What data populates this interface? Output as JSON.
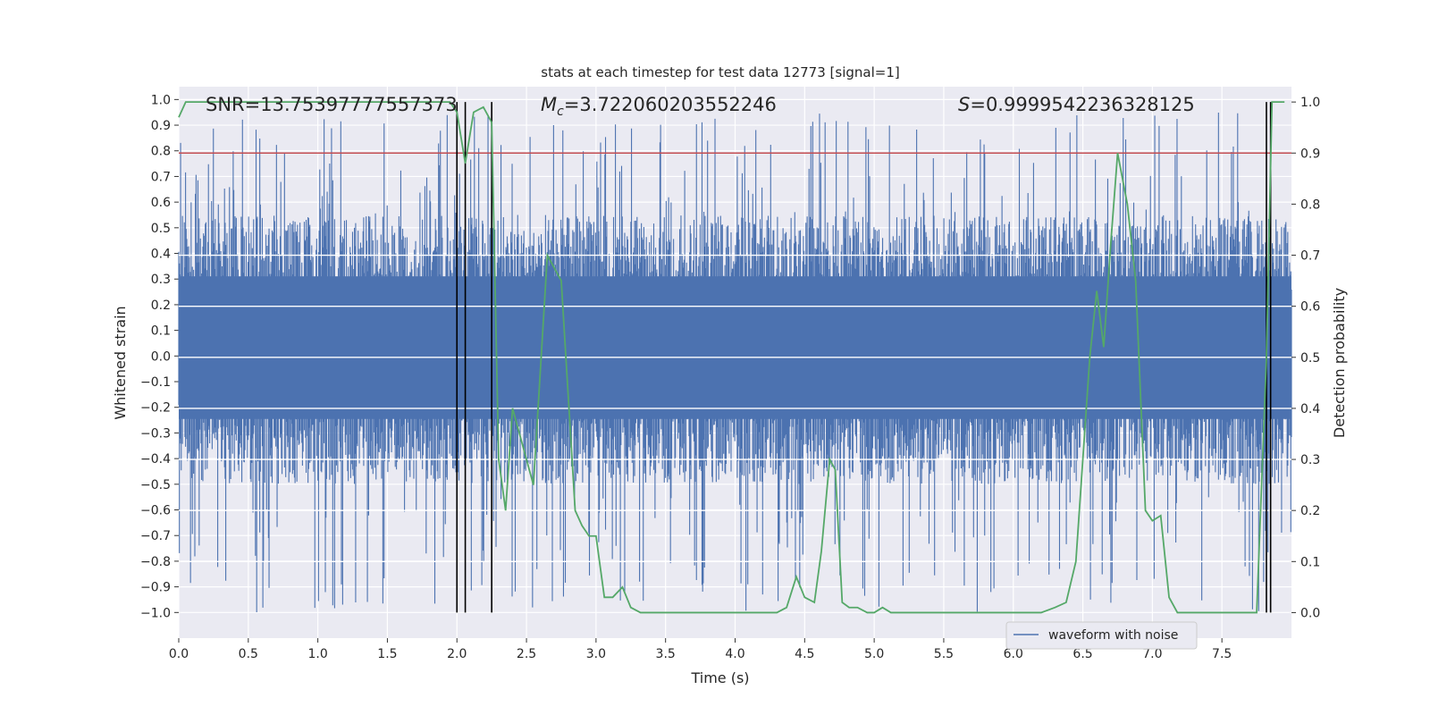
{
  "chart_data": {
    "type": "line",
    "title": "stats at each timestep for test data 12773 [signal=1]",
    "xlabel": "Time (s)",
    "ylabel": "Whitened strain",
    "y2label": "Detection probability",
    "xlim": [
      0,
      8
    ],
    "ylim": [
      -1.1,
      1.05
    ],
    "y2lim": [
      -0.05,
      1.03
    ],
    "x_ticks": [
      0.0,
      0.5,
      1.0,
      1.5,
      2.0,
      2.5,
      3.0,
      3.5,
      4.0,
      4.5,
      5.0,
      5.5,
      6.0,
      6.5,
      7.0,
      7.5
    ],
    "y_ticks": [
      -1.0,
      -0.9,
      -0.8,
      -0.7,
      -0.6,
      -0.5,
      -0.4,
      -0.3,
      -0.2,
      -0.1,
      0.0,
      0.1,
      0.2,
      0.3,
      0.4,
      0.5,
      0.6,
      0.7,
      0.8,
      0.9,
      1.0
    ],
    "y2_ticks": [
      0.0,
      0.1,
      0.2,
      0.3,
      0.4,
      0.5,
      0.6,
      0.7,
      0.8,
      0.9,
      1.0
    ],
    "grid": true,
    "legend": {
      "position": "lower-right",
      "entries": [
        "waveform with noise"
      ]
    },
    "annotations": {
      "snr": "SNR=13.75397777557373",
      "mc_symbol": "M",
      "mc_sub": "c",
      "mc_value": "=3.722060203552246",
      "s_symbol": "S",
      "s_value": "=0.9999542236328125"
    },
    "threshold": {
      "axis": "right",
      "value": 0.9
    },
    "vertical_markers": [
      2.0,
      2.06,
      2.25,
      7.82,
      7.85
    ],
    "waveform": {
      "name": "waveform with noise",
      "x_range": [
        0,
        8
      ],
      "core_envelope": [
        -0.35,
        0.45
      ],
      "peak_range": [
        -1.0,
        0.95
      ],
      "samples": 1800
    },
    "probability": {
      "x": [
        0.0,
        0.05,
        0.5,
        1.0,
        1.5,
        1.95,
        2.0,
        2.06,
        2.12,
        2.19,
        2.25,
        2.3,
        2.35,
        2.4,
        2.45,
        2.5,
        2.55,
        2.65,
        2.75,
        2.85,
        2.9,
        2.95,
        3.0,
        3.06,
        3.12,
        3.19,
        3.25,
        3.32,
        3.45,
        3.6,
        3.7,
        3.8,
        3.95,
        4.1,
        4.3,
        4.37,
        4.44,
        4.5,
        4.57,
        4.62,
        4.68,
        4.72,
        4.77,
        4.82,
        4.88,
        4.95,
        5.0,
        5.06,
        5.12,
        5.2,
        5.4,
        5.6,
        5.8,
        6.0,
        6.2,
        6.3,
        6.38,
        6.45,
        6.5,
        6.55,
        6.6,
        6.65,
        6.7,
        6.75,
        6.82,
        6.88,
        6.95,
        7.0,
        7.06,
        7.12,
        7.18,
        7.24,
        7.3,
        7.45,
        7.6,
        7.75,
        7.82,
        7.86,
        7.88,
        7.95
      ],
      "y": [
        0.97,
        1.0,
        1.0,
        1.0,
        1.0,
        1.0,
        0.98,
        0.88,
        0.98,
        0.99,
        0.96,
        0.3,
        0.2,
        0.4,
        0.35,
        0.3,
        0.25,
        0.7,
        0.65,
        0.2,
        0.17,
        0.15,
        0.15,
        0.03,
        0.03,
        0.05,
        0.01,
        0.0,
        0.0,
        0.0,
        0.0,
        0.0,
        0.0,
        0.0,
        0.0,
        0.01,
        0.07,
        0.03,
        0.02,
        0.12,
        0.3,
        0.28,
        0.02,
        0.01,
        0.01,
        0.0,
        0.0,
        0.01,
        0.0,
        0.0,
        0.0,
        0.0,
        0.0,
        0.0,
        0.0,
        0.01,
        0.02,
        0.1,
        0.3,
        0.5,
        0.63,
        0.52,
        0.72,
        0.9,
        0.8,
        0.65,
        0.2,
        0.18,
        0.19,
        0.03,
        0.0,
        0.0,
        0.0,
        0.0,
        0.0,
        0.0,
        0.5,
        1.0,
        1.0,
        1.0
      ]
    },
    "colors": {
      "waveform": "#4c72b0",
      "probability": "#55a868",
      "threshold": "#c44e52",
      "markers": "#000000",
      "plot_bg": "#eaeaf2",
      "grid": "#ffffff"
    }
  }
}
